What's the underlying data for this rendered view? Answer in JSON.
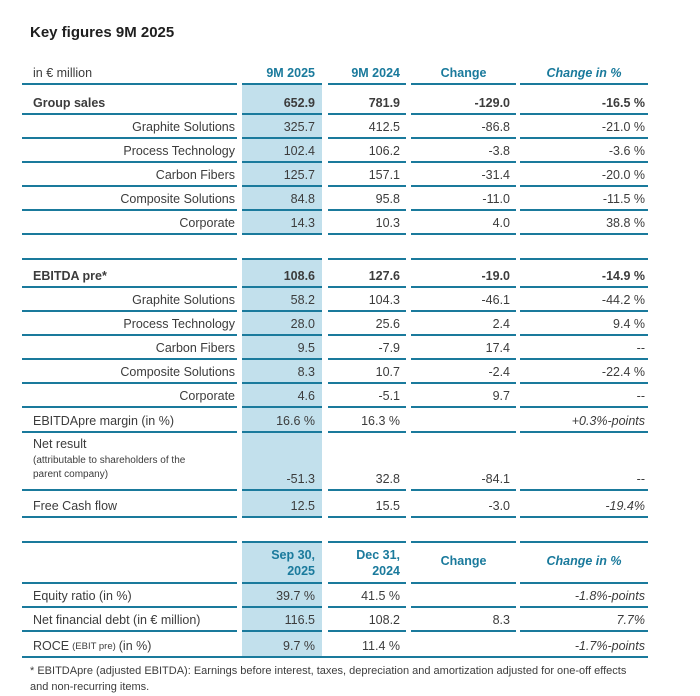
{
  "title": "Key figures 9M 2025",
  "colors": {
    "accent_teal": "#1a7a9c",
    "highlight_band": "#c2e0ec",
    "text": "#3c3c3c"
  },
  "table_main": {
    "unit_label": "in € million",
    "headers": [
      "9M 2025",
      "9M 2024",
      "Change",
      "Change in %"
    ],
    "sales": [
      {
        "label": "Group sales",
        "v": [
          "652.9",
          "781.9",
          "-129.0",
          "-16.5 %"
        ]
      },
      {
        "label": "Graphite Solutions",
        "v": [
          "325.7",
          "412.5",
          "-86.8",
          "-21.0 %"
        ]
      },
      {
        "label": "Process Technology",
        "v": [
          "102.4",
          "106.2",
          "-3.8",
          "-3.6 %"
        ]
      },
      {
        "label": "Carbon Fibers",
        "v": [
          "125.7",
          "157.1",
          "-31.4",
          "-20.0 %"
        ]
      },
      {
        "label": "Composite Solutions",
        "v": [
          "84.8",
          "95.8",
          "-11.0",
          "-11.5 %"
        ]
      },
      {
        "label": "Corporate",
        "v": [
          "14.3",
          "10.3",
          "4.0",
          "38.8 %"
        ]
      }
    ],
    "ebitda": [
      {
        "label": "EBITDA pre*",
        "v": [
          "108.6",
          "127.6",
          "-19.0",
          "-14.9 %"
        ]
      },
      {
        "label": "Graphite Solutions",
        "v": [
          "58.2",
          "104.3",
          "-46.1",
          "-44.2 %"
        ]
      },
      {
        "label": "Process Technology",
        "v": [
          "28.0",
          "25.6",
          "2.4",
          "9.4 %"
        ]
      },
      {
        "label": "Carbon Fibers",
        "v": [
          "9.5",
          "-7.9",
          "17.4",
          "--"
        ]
      },
      {
        "label": "Composite Solutions",
        "v": [
          "8.3",
          "10.7",
          "-2.4",
          "-22.4 %"
        ]
      },
      {
        "label": "Corporate",
        "v": [
          "4.6",
          "-5.1",
          "9.7",
          "--"
        ]
      }
    ],
    "margin": {
      "label": "EBITDApre margin (in %)",
      "v": [
        "16.6 %",
        "16.3 %",
        "",
        "+0.3%-points"
      ]
    },
    "net_result": {
      "label": "Net result",
      "label_small_1": "(attributable to shareholders of the",
      "label_small_2": "parent company)",
      "v": [
        "-51.3",
        "32.8",
        "-84.1",
        "--"
      ]
    },
    "free_cash_flow": {
      "label": "Free Cash flow",
      "v": [
        "12.5",
        "15.5",
        "-3.0",
        "-19.4%"
      ]
    }
  },
  "table_balance": {
    "headers": {
      "c1_line1": "Sep 30,",
      "c1_line2": "2025",
      "c2_line1": "Dec 31,",
      "c2_line2": "2024",
      "c3": "Change",
      "c4": "Change in %"
    },
    "equity_ratio": {
      "label": "Equity ratio (in %)",
      "v": [
        "39.7 %",
        "41.5 %",
        "",
        "-1.8%-points"
      ]
    },
    "net_debt": {
      "label": "Net financial debt (in € million)",
      "v": [
        "116.5",
        "108.2",
        "8.3",
        "7.7%"
      ]
    },
    "roce": {
      "label_main": "ROCE",
      "label_sub": "(EBIT pre)",
      "label_suffix": "(in %)",
      "v": [
        "9.7 %",
        "11.4 %",
        "",
        "-1.7%-points"
      ]
    }
  },
  "footnote": "* EBITDApre (adjusted EBITDA): Earnings before interest, taxes, depreciation and amortization adjusted for one-off effects and non-recurring items."
}
